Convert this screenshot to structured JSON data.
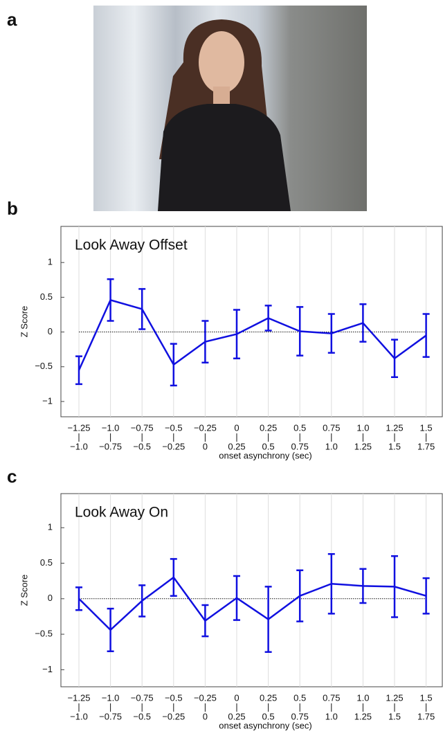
{
  "panels": {
    "a": "a",
    "b": "b",
    "c": "c"
  },
  "chart_data": [
    {
      "type": "line",
      "title": "Look Away Offset",
      "y_label": "Z Score",
      "x_label": "onset asynchrony (sec)",
      "categories": [
        {
          "from": "−1.25",
          "to": "−1.0"
        },
        {
          "from": "−1.0",
          "to": "−0.75"
        },
        {
          "from": "−0.75",
          "to": "−0.5"
        },
        {
          "from": "−0.5",
          "to": "−0.25"
        },
        {
          "from": "−0.25",
          "to": "0"
        },
        {
          "from": "0",
          "to": "0.25"
        },
        {
          "from": "0.25",
          "to": "0.5"
        },
        {
          "from": "0.5",
          "to": "0.75"
        },
        {
          "from": "0.75",
          "to": "1.0"
        },
        {
          "from": "1.0",
          "to": "1.25"
        },
        {
          "from": "1.25",
          "to": "1.5"
        },
        {
          "from": "1.5",
          "to": "1.75"
        }
      ],
      "values": [
        -0.55,
        0.46,
        0.33,
        -0.47,
        -0.14,
        -0.03,
        0.2,
        0.01,
        -0.02,
        0.13,
        -0.38,
        -0.05
      ],
      "errors": [
        0.2,
        0.3,
        0.29,
        0.3,
        0.3,
        0.35,
        0.18,
        0.35,
        0.28,
        0.27,
        0.27,
        0.31
      ],
      "color": "#1010e0",
      "reference_line": 0,
      "ylim": [
        -1.22,
        1.52
      ],
      "yticks": [
        {
          "value": -1,
          "label": "−1"
        },
        {
          "value": -0.5,
          "label": "−0.5"
        },
        0,
        0.5,
        1
      ]
    },
    {
      "type": "line",
      "title": "Look Away On",
      "y_label": "Z Score",
      "x_label": "onset asynchrony (sec)",
      "categories": [
        {
          "from": "−1.25",
          "to": "−1.0"
        },
        {
          "from": "−1.0",
          "to": "−0.75"
        },
        {
          "from": "−0.75",
          "to": "−0.5"
        },
        {
          "from": "−0.5",
          "to": "−0.25"
        },
        {
          "from": "−0.25",
          "to": "0"
        },
        {
          "from": "0",
          "to": "0.25"
        },
        {
          "from": "0.25",
          "to": "0.5"
        },
        {
          "from": "0.5",
          "to": "0.75"
        },
        {
          "from": "0.75",
          "to": "1.0"
        },
        {
          "from": "1.0",
          "to": "1.25"
        },
        {
          "from": "1.25",
          "to": "1.5"
        },
        {
          "from": "1.5",
          "to": "1.75"
        }
      ],
      "values": [
        0.0,
        -0.44,
        -0.03,
        0.3,
        -0.31,
        0.01,
        -0.29,
        0.04,
        0.21,
        0.18,
        0.17,
        0.04
      ],
      "errors": [
        0.16,
        0.3,
        0.22,
        0.26,
        0.22,
        0.31,
        0.46,
        0.36,
        0.42,
        0.24,
        0.43,
        0.25
      ],
      "color": "#1010e0",
      "reference_line": 0,
      "ylim": [
        -1.24,
        1.48
      ],
      "yticks": [
        {
          "value": -1,
          "label": "−1"
        },
        {
          "value": -0.5,
          "label": "−0.5"
        },
        0,
        0.5,
        1
      ]
    }
  ]
}
